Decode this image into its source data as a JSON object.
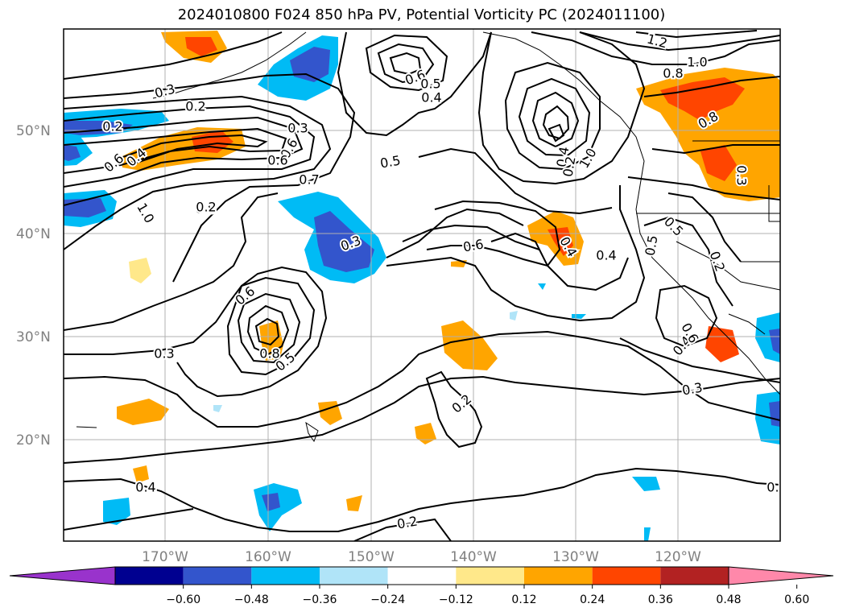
{
  "title": "2024010800 F024 850 hPa PV, Potential Vorticity PC (2024011100)",
  "lat_labels": [
    "50°N",
    "40°N",
    "30°N",
    "20°N"
  ],
  "lon_labels": [
    "170°W",
    "160°W",
    "150°W",
    "140°W",
    "130°W",
    "120°W"
  ],
  "contour_labels": [
    "1.2",
    "1.0",
    "0.8",
    "0.6",
    "0.5",
    "0.4",
    "0.3",
    "0.2",
    "0.2",
    "0.3",
    "0.6",
    "0.6",
    "0.7",
    "0.5",
    "0.4",
    "0.2",
    "1.0",
    "0.8",
    "0.6",
    "0.4",
    "0.8",
    "1.0",
    "0.2",
    "0.3",
    "0.4",
    "0.5",
    "0.6",
    "0.5",
    "0.4",
    "0.6",
    "0.8",
    "0.5",
    "0.2",
    "0.3",
    "0.4",
    "0.2",
    "0.3",
    "0.4",
    "0.6",
    "0.2",
    "0.2",
    "0.3"
  ],
  "colorbar": {
    "ticks": [
      "−0.60",
      "−0.48",
      "−0.36",
      "−0.24",
      "−0.12",
      "0.12",
      "0.24",
      "0.36",
      "0.48",
      "0.60"
    ],
    "colors": [
      "#9933cc",
      "#000090",
      "#3355cc",
      "#00bbf5",
      "#b0e4f8",
      "#ffffff",
      "#ffe88a",
      "#ffa500",
      "#ff4500",
      "#b22222",
      "#ff88aa"
    ]
  }
}
